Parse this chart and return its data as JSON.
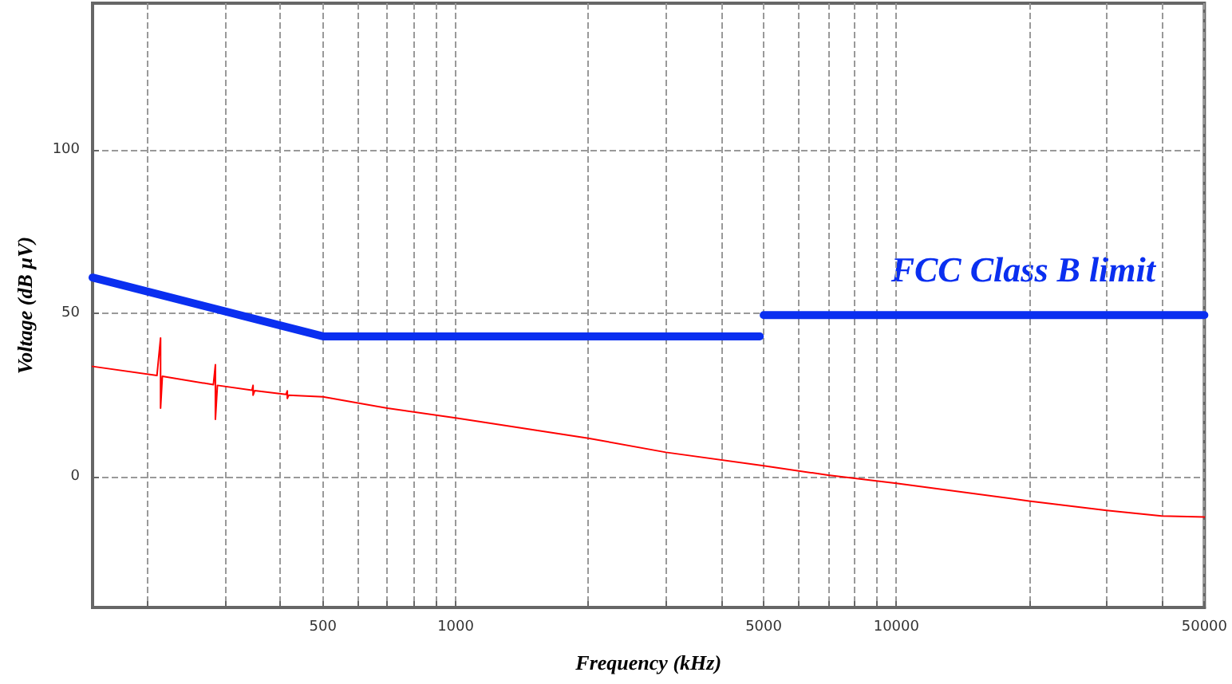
{
  "chart_data": {
    "type": "line",
    "xlabel": "Frequency (kHz)",
    "ylabel": "Voltage (dB µV)",
    "log": "x",
    "xlim": [
      150,
      50000
    ],
    "ylim": [
      -40,
      145
    ],
    "xticks": [
      {
        "value": 200,
        "label": null
      },
      {
        "value": 300,
        "label": null
      },
      {
        "value": 400,
        "label": null
      },
      500,
      {
        "value": 600,
        "label": null
      },
      {
        "value": 700,
        "label": null
      },
      {
        "value": 800,
        "label": null
      },
      {
        "value": 900,
        "label": null
      },
      1000,
      {
        "value": 2000,
        "label": null
      },
      {
        "value": 3000,
        "label": null
      },
      {
        "value": 4000,
        "label": null
      },
      5000,
      {
        "value": 6000,
        "label": null
      },
      {
        "value": 7000,
        "label": null
      },
      {
        "value": 8000,
        "label": null
      },
      {
        "value": 9000,
        "label": null
      },
      10000,
      {
        "value": 20000,
        "label": null
      },
      {
        "value": 30000,
        "label": null
      },
      {
        "value": 40000,
        "label": null
      },
      50000
    ],
    "yticks": [
      0,
      50,
      100
    ],
    "grid": true,
    "marker": "none",
    "line_style": "solid",
    "annotations": [
      "FCC Class B limit"
    ],
    "series": [
      {
        "color": "#0a2ff0",
        "x": [
          150,
          500,
          4900,
          4950,
          5000,
          50000
        ],
        "values": [
          61,
          43,
          43,
          null,
          49.5,
          49.5
        ]
      },
      {
        "color": "#ff0000",
        "x": [
          150,
          210,
          214,
          214,
          216,
          282,
          285,
          285,
          288,
          345,
          347,
          347,
          350,
          412,
          415,
          415,
          418,
          500,
          700,
          1000,
          2000,
          3000,
          5000,
          7000,
          10000,
          20000,
          30000,
          40000,
          50000
        ],
        "values": [
          33.8,
          31,
          42.5,
          21,
          30.8,
          28.2,
          34.3,
          17.6,
          28,
          26.5,
          28,
          25,
          26.4,
          25.2,
          26.3,
          24,
          25,
          24.5,
          21,
          18,
          11.8,
          7.5,
          3.4,
          0.5,
          -2,
          -7.4,
          -10.3,
          -12,
          -12.3
        ]
      }
    ]
  }
}
